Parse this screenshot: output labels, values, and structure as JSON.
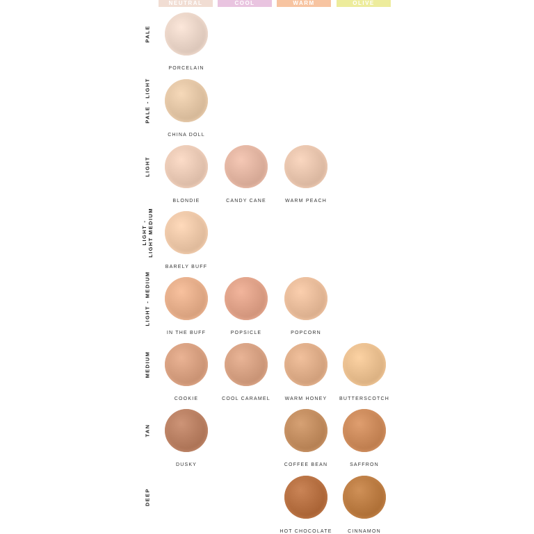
{
  "undertones": [
    {
      "label": "NEUTRAL",
      "color": "#f1ddd3"
    },
    {
      "label": "COOL",
      "color": "#e9c4e0"
    },
    {
      "label": "WARM",
      "color": "#f7c4a1"
    },
    {
      "label": "OLIVE",
      "color": "#edec9c"
    }
  ],
  "depths": [
    "PALE",
    "PALE - LIGHT",
    "LIGHT",
    "LIGHT -\nLIGHT MEDIUM",
    "LIGHT - MEDIUM",
    "MEDIUM",
    "TAN",
    "DEEP"
  ],
  "shades": [
    {
      "name": "PORCELAIN",
      "row": 0,
      "col": 0,
      "color": "#e6d1c4"
    },
    {
      "name": "CHINA DOLL",
      "row": 1,
      "col": 0,
      "color": "#e0c3a3"
    },
    {
      "name": "BLONDIE",
      "row": 2,
      "col": 0,
      "color": "#e6c6b2"
    },
    {
      "name": "CANDY CANE",
      "row": 2,
      "col": 1,
      "color": "#dfb29f"
    },
    {
      "name": "WARM PEACH",
      "row": 2,
      "col": 2,
      "color": "#e4c1aa"
    },
    {
      "name": "BARELY BUFF",
      "row": 3,
      "col": 0,
      "color": "#e9c4a5"
    },
    {
      "name": "IN THE BUFF",
      "row": 4,
      "col": 0,
      "color": "#e2ab88"
    },
    {
      "name": "POPSICLE",
      "row": 4,
      "col": 1,
      "color": "#dc9f86"
    },
    {
      "name": "POPCORN",
      "row": 4,
      "col": 2,
      "color": "#e5b998"
    },
    {
      "name": "COOKIE",
      "row": 5,
      "col": 0,
      "color": "#d49d7e"
    },
    {
      "name": "COOL CARAMEL",
      "row": 5,
      "col": 1,
      "color": "#d39e80"
    },
    {
      "name": "WARM HONEY",
      "row": 5,
      "col": 2,
      "color": "#dbaa86"
    },
    {
      "name": "BUTTERSCOTCH",
      "row": 5,
      "col": 3,
      "color": "#e6bc8d"
    },
    {
      "name": "DUSKY",
      "row": 6,
      "col": 0,
      "color": "#b77e61"
    },
    {
      "name": "COFFEE BEAN",
      "row": 6,
      "col": 2,
      "color": "#c08b5e"
    },
    {
      "name": "SAFFRON",
      "row": 6,
      "col": 3,
      "color": "#c98859"
    },
    {
      "name": "HOT CHOCOLATE",
      "row": 7,
      "col": 2,
      "color": "#b46e40"
    },
    {
      "name": "CINNAMON",
      "row": 7,
      "col": 3,
      "color": "#b97a41"
    }
  ]
}
